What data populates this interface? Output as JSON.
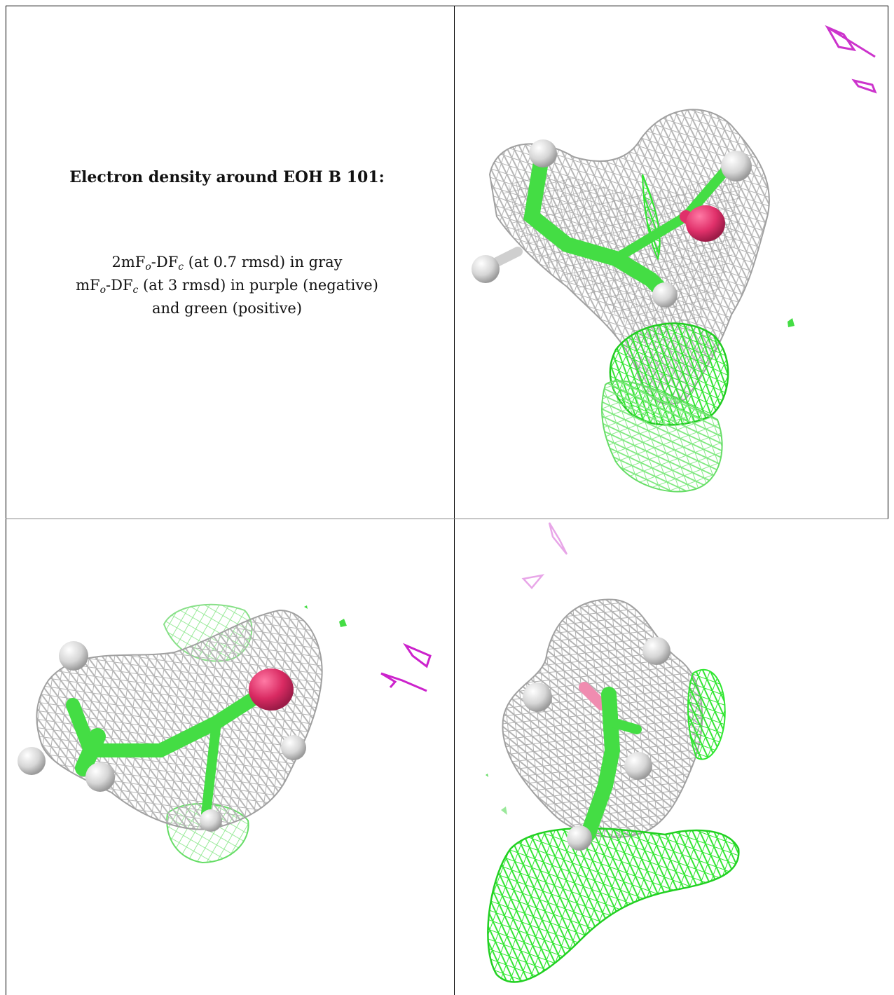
{
  "caption": {
    "title": "Electron density around EOH B 101:",
    "line1": {
      "pre": "2mF",
      "sub1": "o",
      "mid": "-DF",
      "sub2": "c",
      "post": " (at 0.7 rmsd) in gray"
    },
    "line2": {
      "pre": "mF",
      "sub1": "o",
      "mid": "-DF",
      "sub2": "c",
      "post": " (at 3 rmsd) in purple (negative)"
    },
    "line3": "and green (positive)"
  },
  "colors": {
    "gray_map": "#a8a8a8",
    "positive_map": "#33e633",
    "negative_map": "#cc33cc",
    "carbon": "#44dd44",
    "oxygen": "#e0306a",
    "hydrogen": "#dcdcdc",
    "frame": "#000000"
  },
  "icons": {
    "gray_mesh": "mesh-2fo-fc-gray",
    "green_mesh": "mesh-fo-fc-positive",
    "purple_mesh": "mesh-fo-fc-negative"
  }
}
